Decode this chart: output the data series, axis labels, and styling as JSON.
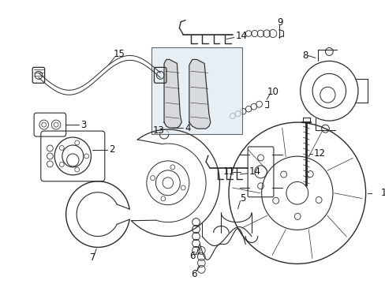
{
  "background_color": "#ffffff",
  "figure_width": 4.89,
  "figure_height": 3.6,
  "dpi": 100,
  "line_color": "#2a2a2a",
  "text_color": "#111111",
  "font_size": 8.5
}
